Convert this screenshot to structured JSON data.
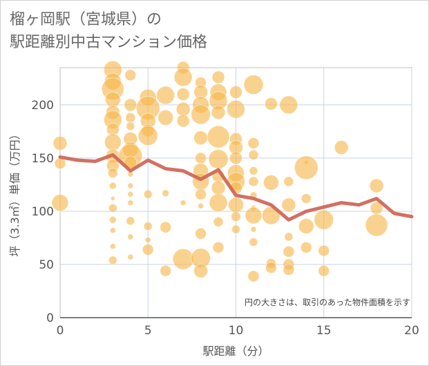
{
  "title_lines": [
    "榴ヶ岡駅（宮城県）の",
    "駅距離別中古マンション価格"
  ],
  "chart_data": {
    "type": "scatter",
    "xlabel": "駅距離（分）",
    "ylabel": "坪（3.3㎡）単価（万円）",
    "xlim": [
      0,
      20
    ],
    "ylim": [
      0,
      235
    ],
    "xticks": [
      0,
      5,
      10,
      15,
      20
    ],
    "yticks": [
      0,
      50,
      100,
      150,
      200
    ],
    "grid": true,
    "note": "円の大きさは、取引のあった物件面積を示す",
    "colors": {
      "bubble": "#f5b64a",
      "line": "#d0685a",
      "grid": "#c8d2e6",
      "frame": "#bfbfbf"
    },
    "line": {
      "x": [
        0,
        1,
        2,
        3,
        4,
        5,
        6,
        7,
        8,
        9,
        10,
        11,
        12,
        13,
        14,
        15,
        16,
        17,
        18,
        19,
        20
      ],
      "y": [
        151,
        148,
        147,
        153,
        138,
        148,
        140,
        138,
        130,
        139,
        115,
        112,
        106,
        92,
        100,
        104,
        108,
        106,
        112,
        98,
        95
      ]
    },
    "bubbles": [
      {
        "x": 0,
        "y": 164,
        "s": 10
      },
      {
        "x": 0,
        "y": 145,
        "s": 8
      },
      {
        "x": 0,
        "y": 108,
        "s": 12
      },
      {
        "x": 3,
        "y": 233,
        "s": 13
      },
      {
        "x": 3,
        "y": 222,
        "s": 12
      },
      {
        "x": 3,
        "y": 215,
        "s": 16
      },
      {
        "x": 3,
        "y": 205,
        "s": 11
      },
      {
        "x": 3,
        "y": 193,
        "s": 10
      },
      {
        "x": 3,
        "y": 186,
        "s": 13
      },
      {
        "x": 3,
        "y": 177,
        "s": 9
      },
      {
        "x": 3,
        "y": 165,
        "s": 12
      },
      {
        "x": 3,
        "y": 152,
        "s": 10
      },
      {
        "x": 3,
        "y": 143,
        "s": 9
      },
      {
        "x": 3,
        "y": 136,
        "s": 7
      },
      {
        "x": 3,
        "y": 124,
        "s": 5
      },
      {
        "x": 3,
        "y": 112,
        "s": 3
      },
      {
        "x": 3,
        "y": 103,
        "s": 6
      },
      {
        "x": 3,
        "y": 92,
        "s": 5
      },
      {
        "x": 3,
        "y": 82,
        "s": 4
      },
      {
        "x": 3,
        "y": 67,
        "s": 4
      },
      {
        "x": 3,
        "y": 54,
        "s": 6
      },
      {
        "x": 4,
        "y": 228,
        "s": 8
      },
      {
        "x": 4,
        "y": 200,
        "s": 9
      },
      {
        "x": 4,
        "y": 188,
        "s": 7
      },
      {
        "x": 4,
        "y": 180,
        "s": 6
      },
      {
        "x": 4,
        "y": 168,
        "s": 10
      },
      {
        "x": 4,
        "y": 158,
        "s": 11
      },
      {
        "x": 4,
        "y": 152,
        "s": 17
      },
      {
        "x": 4,
        "y": 146,
        "s": 9
      },
      {
        "x": 4,
        "y": 135,
        "s": 4
      },
      {
        "x": 4,
        "y": 124,
        "s": 4
      },
      {
        "x": 4,
        "y": 116,
        "s": 4
      },
      {
        "x": 4,
        "y": 108,
        "s": 4
      },
      {
        "x": 4,
        "y": 91,
        "s": 6
      },
      {
        "x": 4,
        "y": 76,
        "s": 4
      },
      {
        "x": 4,
        "y": 57,
        "s": 4
      },
      {
        "x": 5,
        "y": 207,
        "s": 12
      },
      {
        "x": 5,
        "y": 197,
        "s": 17
      },
      {
        "x": 5,
        "y": 185,
        "s": 11
      },
      {
        "x": 5,
        "y": 176,
        "s": 9
      },
      {
        "x": 5,
        "y": 171,
        "s": 14
      },
      {
        "x": 5,
        "y": 116,
        "s": 6
      },
      {
        "x": 5,
        "y": 86,
        "s": 6
      },
      {
        "x": 5,
        "y": 73,
        "s": 4
      },
      {
        "x": 5,
        "y": 64,
        "s": 8
      },
      {
        "x": 6,
        "y": 209,
        "s": 13
      },
      {
        "x": 6,
        "y": 188,
        "s": 11
      },
      {
        "x": 6,
        "y": 117,
        "s": 5
      },
      {
        "x": 6,
        "y": 85,
        "s": 8
      },
      {
        "x": 6,
        "y": 44,
        "s": 8
      },
      {
        "x": 7,
        "y": 235,
        "s": 9
      },
      {
        "x": 7,
        "y": 226,
        "s": 13
      },
      {
        "x": 7,
        "y": 210,
        "s": 9
      },
      {
        "x": 7,
        "y": 196,
        "s": 10
      },
      {
        "x": 7,
        "y": 185,
        "s": 9
      },
      {
        "x": 7,
        "y": 108,
        "s": 4
      },
      {
        "x": 7,
        "y": 55,
        "s": 15
      },
      {
        "x": 8,
        "y": 221,
        "s": 8
      },
      {
        "x": 8,
        "y": 212,
        "s": 10
      },
      {
        "x": 8,
        "y": 200,
        "s": 12
      },
      {
        "x": 8,
        "y": 191,
        "s": 14
      },
      {
        "x": 8,
        "y": 169,
        "s": 10
      },
      {
        "x": 8,
        "y": 150,
        "s": 8
      },
      {
        "x": 8,
        "y": 138,
        "s": 11
      },
      {
        "x": 8,
        "y": 128,
        "s": 12
      },
      {
        "x": 8,
        "y": 116,
        "s": 8
      },
      {
        "x": 8,
        "y": 105,
        "s": 4
      },
      {
        "x": 8,
        "y": 79,
        "s": 8
      },
      {
        "x": 8,
        "y": 56,
        "s": 14
      },
      {
        "x": 8,
        "y": 44,
        "s": 10
      },
      {
        "x": 9,
        "y": 226,
        "s": 9
      },
      {
        "x": 9,
        "y": 212,
        "s": 12
      },
      {
        "x": 9,
        "y": 204,
        "s": 13
      },
      {
        "x": 9,
        "y": 193,
        "s": 10
      },
      {
        "x": 9,
        "y": 170,
        "s": 16
      },
      {
        "x": 9,
        "y": 149,
        "s": 14
      },
      {
        "x": 9,
        "y": 133,
        "s": 9
      },
      {
        "x": 9,
        "y": 122,
        "s": 10
      },
      {
        "x": 9,
        "y": 108,
        "s": 13
      },
      {
        "x": 9,
        "y": 90,
        "s": 7
      },
      {
        "x": 9,
        "y": 66,
        "s": 8
      },
      {
        "x": 10,
        "y": 212,
        "s": 9
      },
      {
        "x": 10,
        "y": 196,
        "s": 13
      },
      {
        "x": 10,
        "y": 168,
        "s": 9
      },
      {
        "x": 10,
        "y": 160,
        "s": 10
      },
      {
        "x": 10,
        "y": 150,
        "s": 9
      },
      {
        "x": 10,
        "y": 136,
        "s": 12
      },
      {
        "x": 10,
        "y": 128,
        "s": 13
      },
      {
        "x": 10,
        "y": 122,
        "s": 9
      },
      {
        "x": 10,
        "y": 106,
        "s": 11
      },
      {
        "x": 10,
        "y": 95,
        "s": 7
      },
      {
        "x": 10,
        "y": 83,
        "s": 6
      },
      {
        "x": 11,
        "y": 219,
        "s": 14
      },
      {
        "x": 11,
        "y": 164,
        "s": 8
      },
      {
        "x": 11,
        "y": 153,
        "s": 7
      },
      {
        "x": 11,
        "y": 138,
        "s": 6
      },
      {
        "x": 11,
        "y": 128,
        "s": 7
      },
      {
        "x": 11,
        "y": 115,
        "s": 5
      },
      {
        "x": 11,
        "y": 103,
        "s": 4
      },
      {
        "x": 11,
        "y": 96,
        "s": 12
      },
      {
        "x": 11,
        "y": 83,
        "s": 4
      },
      {
        "x": 11,
        "y": 71,
        "s": 6
      },
      {
        "x": 11,
        "y": 39,
        "s": 8
      },
      {
        "x": 12,
        "y": 201,
        "s": 9
      },
      {
        "x": 12,
        "y": 127,
        "s": 11
      },
      {
        "x": 12,
        "y": 96,
        "s": 13
      },
      {
        "x": 12,
        "y": 51,
        "s": 7
      },
      {
        "x": 12,
        "y": 47,
        "s": 8
      },
      {
        "x": 13,
        "y": 200,
        "s": 13
      },
      {
        "x": 13,
        "y": 128,
        "s": 7
      },
      {
        "x": 13,
        "y": 106,
        "s": 10
      },
      {
        "x": 13,
        "y": 76,
        "s": 6
      },
      {
        "x": 13,
        "y": 62,
        "s": 8
      },
      {
        "x": 13,
        "y": 50,
        "s": 8
      },
      {
        "x": 13,
        "y": 45,
        "s": 8
      },
      {
        "x": 14,
        "y": 146,
        "s": 3
      },
      {
        "x": 14,
        "y": 141,
        "s": 17
      },
      {
        "x": 14,
        "y": 112,
        "s": 7
      },
      {
        "x": 14,
        "y": 86,
        "s": 11
      },
      {
        "x": 14,
        "y": 66,
        "s": 8
      },
      {
        "x": 15,
        "y": 92,
        "s": 14
      },
      {
        "x": 15,
        "y": 63,
        "s": 8
      },
      {
        "x": 15,
        "y": 44,
        "s": 8
      },
      {
        "x": 16,
        "y": 160,
        "s": 10
      },
      {
        "x": 18,
        "y": 124,
        "s": 10
      },
      {
        "x": 18,
        "y": 103,
        "s": 9
      },
      {
        "x": 18,
        "y": 87,
        "s": 16
      }
    ]
  }
}
